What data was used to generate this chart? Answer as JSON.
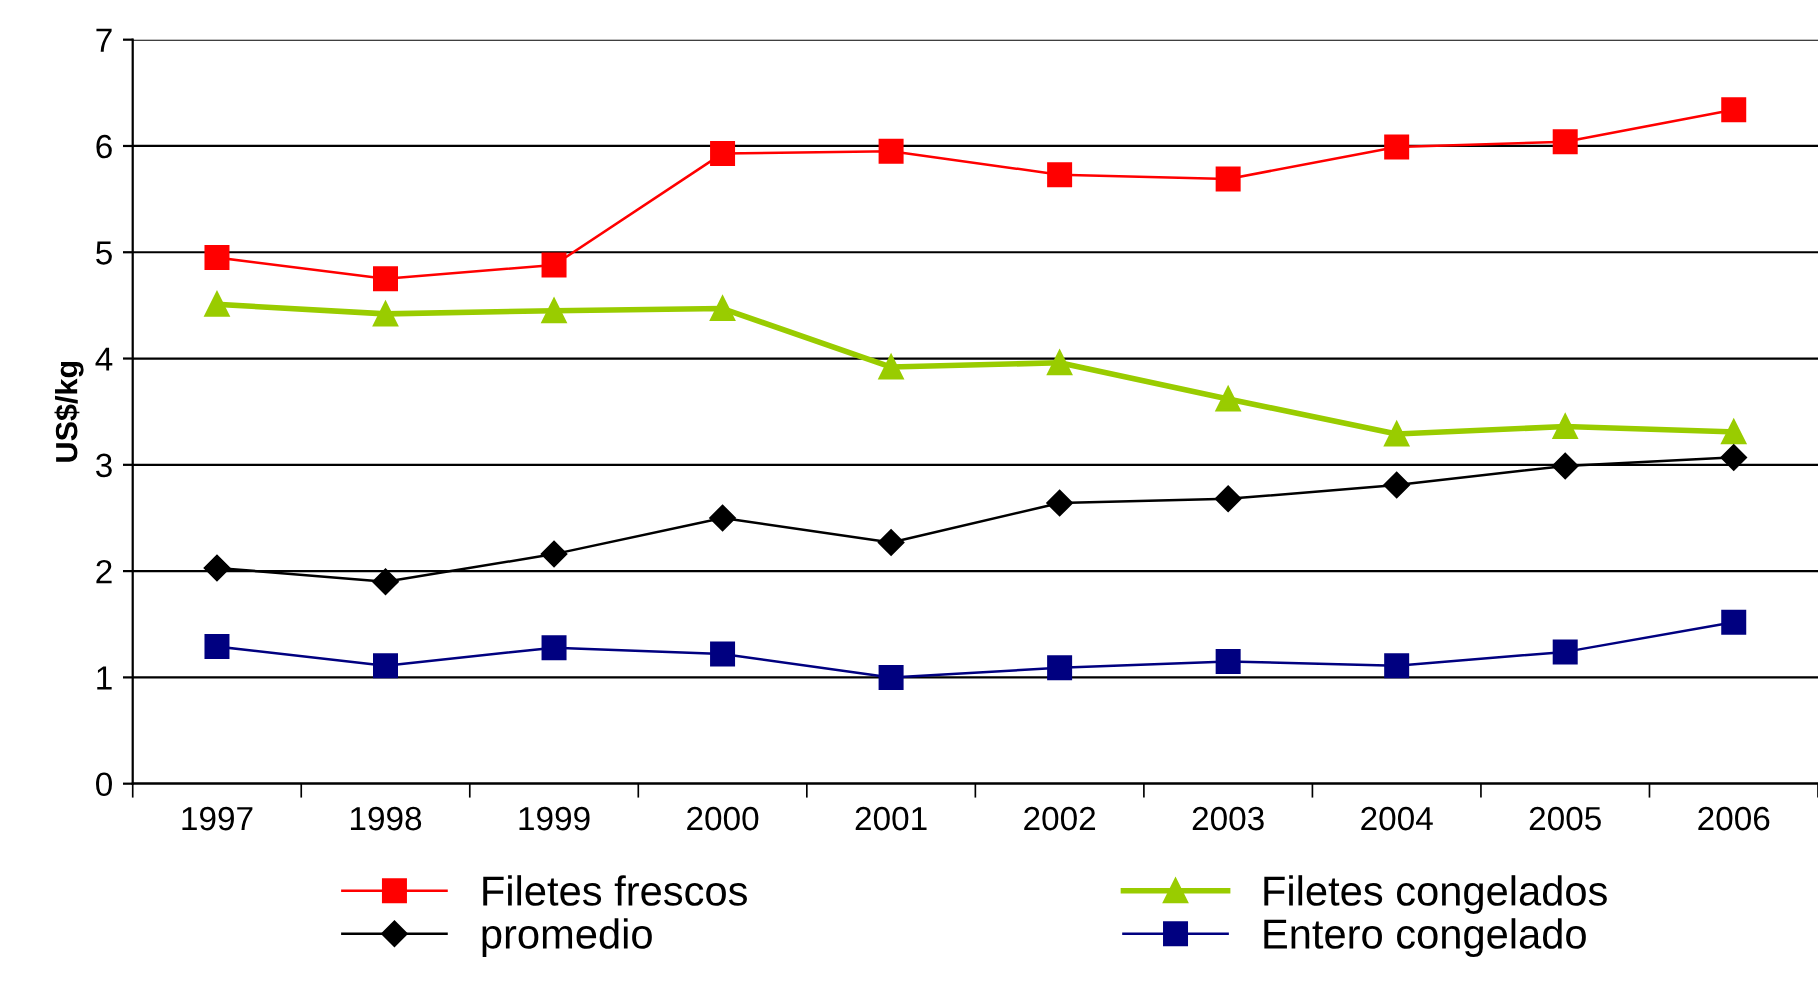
{
  "chart_data": {
    "type": "line",
    "ylabel": "US$/kg",
    "categories": [
      "1997",
      "1998",
      "1999",
      "2000",
      "2001",
      "2002",
      "2003",
      "2004",
      "2005",
      "2006"
    ],
    "ylim": [
      0,
      7
    ],
    "yticks": [
      0,
      1,
      2,
      3,
      4,
      5,
      6,
      7
    ],
    "grid": "y",
    "legend": "bottom",
    "series": [
      {
        "name": "Filetes frescos",
        "color": "#ff0000",
        "marker": "square",
        "values": [
          4.95,
          4.75,
          4.88,
          5.93,
          5.95,
          5.73,
          5.69,
          5.99,
          6.04,
          6.34
        ]
      },
      {
        "name": "Filetes congelados",
        "color": "#99cc00",
        "marker": "triangle",
        "values": [
          4.51,
          4.42,
          4.45,
          4.47,
          3.92,
          3.96,
          3.62,
          3.29,
          3.36,
          3.31
        ]
      },
      {
        "name": "promedio",
        "color": "#000000",
        "marker": "diamond",
        "values": [
          2.03,
          1.9,
          2.16,
          2.5,
          2.27,
          2.64,
          2.68,
          2.81,
          2.99,
          3.07
        ]
      },
      {
        "name": "Entero congelado",
        "color": "#000080",
        "marker": "square",
        "values": [
          1.29,
          1.11,
          1.28,
          1.22,
          1.0,
          1.09,
          1.15,
          1.11,
          1.24,
          1.52
        ]
      }
    ]
  }
}
